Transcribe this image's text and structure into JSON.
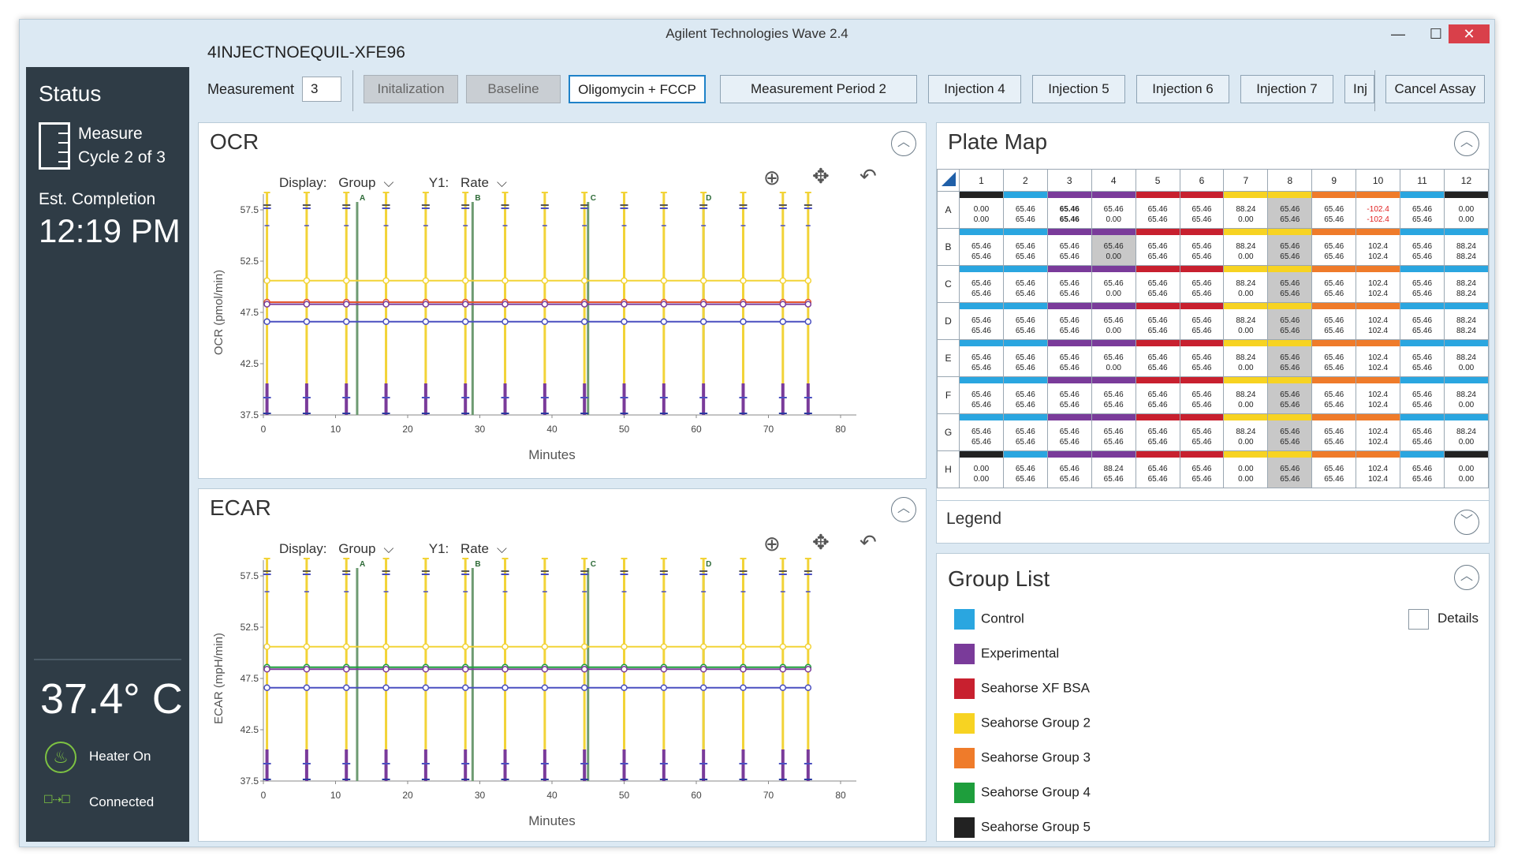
{
  "window": {
    "title": "Agilent Technologies Wave 2.4",
    "min": "—",
    "max": "☐",
    "close": "✕"
  },
  "assay_name": "4INJECTNOEQUIL-XFE96",
  "sidebar": {
    "status_title": "Status",
    "cycle_text": "Measure Cycle 2 of 3",
    "est_label": "Est. Completion",
    "est_time": "12:19 PM",
    "temperature": "37.4° C",
    "heater_label": "Heater On",
    "connected_label": "Connected"
  },
  "toolbar": {
    "measurement_label": "Measurement",
    "measurement_value": "3",
    "steps": [
      "Initalization",
      "Baseline",
      "Oligomycin + FCCP",
      "Measurement Period 2",
      "Injection 4",
      "Injection 5",
      "Injection 6",
      "Injection 7",
      "Inj"
    ],
    "cancel_label": "Cancel Assay"
  },
  "ocr_panel": {
    "title": "OCR",
    "display_label": "Display:",
    "display_value": "Group",
    "y1_label": "Y1:",
    "y1_value": "Rate"
  },
  "ecar_panel": {
    "title": "ECAR",
    "display_label": "Display:",
    "display_value": "Group",
    "y1_label": "Y1:",
    "y1_value": "Rate"
  },
  "chart_data": [
    {
      "type": "line",
      "title": "OCR",
      "xlabel": "Minutes",
      "ylabel": "OCR (pmol/min)",
      "xlim": [
        0,
        80
      ],
      "ylim": [
        37.5,
        57.5
      ],
      "xticks": [
        "0",
        "10",
        "20",
        "30",
        "40",
        "50",
        "60",
        "70",
        "80"
      ],
      "yticks": [
        "37.5",
        "42.5",
        "47.5",
        "52.5",
        "57.5"
      ],
      "injections": [
        {
          "label": "A",
          "x": 13
        },
        {
          "label": "B",
          "x": 29
        },
        {
          "label": "C",
          "x": 45
        },
        {
          "label": "D",
          "x": 61
        }
      ],
      "x": [
        0.5,
        6,
        11.5,
        17,
        22.5,
        28,
        33.5,
        39,
        44.5,
        50,
        55.5,
        61,
        66.5,
        72,
        75.5
      ],
      "series": [
        {
          "values": [
            50.6,
            50.6,
            50.6,
            50.6,
            50.6,
            50.6,
            50.6,
            50.6,
            50.6,
            50.6,
            50.6,
            50.6,
            50.6,
            50.6,
            50.6
          ],
          "color": "#f2d337"
        },
        {
          "values": [
            48.5,
            48.5,
            48.5,
            48.5,
            48.5,
            48.5,
            48.5,
            48.5,
            48.5,
            48.5,
            48.5,
            48.5,
            48.5,
            48.5,
            48.5
          ],
          "color": "#e4572e"
        },
        {
          "values": [
            48.3,
            48.3,
            48.3,
            48.3,
            48.3,
            48.3,
            48.3,
            48.3,
            48.3,
            48.3,
            48.3,
            48.3,
            48.3,
            48.3,
            48.3
          ],
          "color": "#7a3b9a"
        },
        {
          "values": [
            46.6,
            46.6,
            46.6,
            46.6,
            46.6,
            46.6,
            46.6,
            46.6,
            46.6,
            46.6,
            46.6,
            46.6,
            46.6,
            46.6,
            46.6
          ],
          "color": "#4a4fc0"
        }
      ],
      "grid": false
    },
    {
      "type": "line",
      "title": "ECAR",
      "xlabel": "Minutes",
      "ylabel": "ECAR (mpH/min)",
      "xlim": [
        0,
        80
      ],
      "ylim": [
        37.5,
        57.5
      ],
      "xticks": [
        "0",
        "10",
        "20",
        "30",
        "40",
        "50",
        "60",
        "70",
        "80"
      ],
      "yticks": [
        "37.5",
        "42.5",
        "47.5",
        "52.5",
        "57.5"
      ],
      "injections": [
        {
          "label": "A",
          "x": 13
        },
        {
          "label": "B",
          "x": 29
        },
        {
          "label": "C",
          "x": 45
        },
        {
          "label": "D",
          "x": 61
        }
      ],
      "x": [
        0.5,
        6,
        11.5,
        17,
        22.5,
        28,
        33.5,
        39,
        44.5,
        50,
        55.5,
        61,
        66.5,
        72,
        75.5
      ],
      "series": [
        {
          "values": [
            50.6,
            50.6,
            50.6,
            50.6,
            50.6,
            50.6,
            50.6,
            50.6,
            50.6,
            50.6,
            50.6,
            50.6,
            50.6,
            50.6,
            50.6
          ],
          "color": "#f2d337"
        },
        {
          "values": [
            48.6,
            48.6,
            48.6,
            48.6,
            48.6,
            48.6,
            48.6,
            48.6,
            48.6,
            48.6,
            48.6,
            48.6,
            48.6,
            48.6,
            48.6
          ],
          "color": "#1e9e3c"
        },
        {
          "values": [
            48.4,
            48.4,
            48.4,
            48.4,
            48.4,
            48.4,
            48.4,
            48.4,
            48.4,
            48.4,
            48.4,
            48.4,
            48.4,
            48.4,
            48.4
          ],
          "color": "#7a3b9a"
        },
        {
          "values": [
            46.6,
            46.6,
            46.6,
            46.6,
            46.6,
            46.6,
            46.6,
            46.6,
            46.6,
            46.6,
            46.6,
            46.6,
            46.6,
            46.6,
            46.6
          ],
          "color": "#4a4fc0"
        }
      ],
      "grid": false
    }
  ],
  "plate_map": {
    "title": "Plate Map",
    "columns": [
      "1",
      "2",
      "3",
      "4",
      "5",
      "6",
      "7",
      "8",
      "9",
      "10",
      "11",
      "12"
    ],
    "rows": [
      {
        "label": "A",
        "colors": [
          "#222222",
          "#2aa6e0",
          "#7a3b9a",
          "#7a3b9a",
          "#c8202f",
          "#c8202f",
          "#f7d322",
          "#f7d322",
          "#ef7b2a",
          "#ef7b2a",
          "#2aa6e0",
          "#222222"
        ],
        "top": [
          "0.00",
          "65.46",
          "65.46",
          "65.46",
          "65.46",
          "65.46",
          "88.24",
          "65.46",
          "65.46",
          "-102.4",
          "65.46",
          "0.00"
        ],
        "bottom": [
          "0.00",
          "65.46",
          "65.46",
          "0.00",
          "65.46",
          "65.46",
          "0.00",
          "65.46",
          "65.46",
          "-102.4",
          "65.46",
          "0.00"
        ]
      },
      {
        "label": "B",
        "colors": [
          "#2aa6e0",
          "#2aa6e0",
          "#7a3b9a",
          "#7a3b9a",
          "#c8202f",
          "#c8202f",
          "#f7d322",
          "#f7d322",
          "#ef7b2a",
          "#ef7b2a",
          "#2aa6e0",
          "#2aa6e0"
        ],
        "top": [
          "65.46",
          "65.46",
          "65.46",
          "65.46",
          "65.46",
          "65.46",
          "88.24",
          "65.46",
          "65.46",
          "102.4",
          "65.46",
          "88.24"
        ],
        "bottom": [
          "65.46",
          "65.46",
          "65.46",
          "0.00",
          "65.46",
          "65.46",
          "0.00",
          "65.46",
          "65.46",
          "102.4",
          "65.46",
          "88.24"
        ]
      },
      {
        "label": "C",
        "colors": [
          "#2aa6e0",
          "#2aa6e0",
          "#7a3b9a",
          "#7a3b9a",
          "#c8202f",
          "#c8202f",
          "#f7d322",
          "#f7d322",
          "#ef7b2a",
          "#ef7b2a",
          "#2aa6e0",
          "#2aa6e0"
        ],
        "top": [
          "65.46",
          "65.46",
          "65.46",
          "65.46",
          "65.46",
          "65.46",
          "88.24",
          "65.46",
          "65.46",
          "102.4",
          "65.46",
          "88.24"
        ],
        "bottom": [
          "65.46",
          "65.46",
          "65.46",
          "0.00",
          "65.46",
          "65.46",
          "0.00",
          "65.46",
          "65.46",
          "102.4",
          "65.46",
          "88.24"
        ]
      },
      {
        "label": "D",
        "colors": [
          "#2aa6e0",
          "#2aa6e0",
          "#7a3b9a",
          "#7a3b9a",
          "#c8202f",
          "#c8202f",
          "#f7d322",
          "#f7d322",
          "#ef7b2a",
          "#ef7b2a",
          "#2aa6e0",
          "#2aa6e0"
        ],
        "top": [
          "65.46",
          "65.46",
          "65.46",
          "65.46",
          "65.46",
          "65.46",
          "88.24",
          "65.46",
          "65.46",
          "102.4",
          "65.46",
          "88.24"
        ],
        "bottom": [
          "65.46",
          "65.46",
          "65.46",
          "0.00",
          "65.46",
          "65.46",
          "0.00",
          "65.46",
          "65.46",
          "102.4",
          "65.46",
          "88.24"
        ]
      },
      {
        "label": "E",
        "colors": [
          "#2aa6e0",
          "#2aa6e0",
          "#7a3b9a",
          "#7a3b9a",
          "#c8202f",
          "#c8202f",
          "#f7d322",
          "#f7d322",
          "#ef7b2a",
          "#ef7b2a",
          "#2aa6e0",
          "#2aa6e0"
        ],
        "top": [
          "65.46",
          "65.46",
          "65.46",
          "65.46",
          "65.46",
          "65.46",
          "88.24",
          "65.46",
          "65.46",
          "102.4",
          "65.46",
          "88.24"
        ],
        "bottom": [
          "65.46",
          "65.46",
          "65.46",
          "0.00",
          "65.46",
          "65.46",
          "0.00",
          "65.46",
          "65.46",
          "102.4",
          "65.46",
          "0.00"
        ]
      },
      {
        "label": "F",
        "colors": [
          "#2aa6e0",
          "#2aa6e0",
          "#7a3b9a",
          "#7a3b9a",
          "#c8202f",
          "#c8202f",
          "#f7d322",
          "#f7d322",
          "#ef7b2a",
          "#ef7b2a",
          "#2aa6e0",
          "#2aa6e0"
        ],
        "top": [
          "65.46",
          "65.46",
          "65.46",
          "65.46",
          "65.46",
          "65.46",
          "88.24",
          "65.46",
          "65.46",
          "102.4",
          "65.46",
          "88.24"
        ],
        "bottom": [
          "65.46",
          "65.46",
          "65.46",
          "65.46",
          "65.46",
          "65.46",
          "0.00",
          "65.46",
          "65.46",
          "102.4",
          "65.46",
          "0.00"
        ]
      },
      {
        "label": "G",
        "colors": [
          "#2aa6e0",
          "#2aa6e0",
          "#7a3b9a",
          "#7a3b9a",
          "#c8202f",
          "#c8202f",
          "#f7d322",
          "#f7d322",
          "#ef7b2a",
          "#ef7b2a",
          "#2aa6e0",
          "#2aa6e0"
        ],
        "top": [
          "65.46",
          "65.46",
          "65.46",
          "65.46",
          "65.46",
          "65.46",
          "88.24",
          "65.46",
          "65.46",
          "102.4",
          "65.46",
          "88.24"
        ],
        "bottom": [
          "65.46",
          "65.46",
          "65.46",
          "65.46",
          "65.46",
          "65.46",
          "0.00",
          "65.46",
          "65.46",
          "102.4",
          "65.46",
          "0.00"
        ]
      },
      {
        "label": "H",
        "colors": [
          "#222222",
          "#2aa6e0",
          "#7a3b9a",
          "#7a3b9a",
          "#c8202f",
          "#c8202f",
          "#f7d322",
          "#f7d322",
          "#ef7b2a",
          "#ef7b2a",
          "#2aa6e0",
          "#222222"
        ],
        "top": [
          "0.00",
          "65.46",
          "65.46",
          "88.24",
          "65.46",
          "65.46",
          "0.00",
          "65.46",
          "65.46",
          "102.4",
          "65.46",
          "0.00"
        ],
        "bottom": [
          "0.00",
          "65.46",
          "65.46",
          "65.46",
          "65.46",
          "65.46",
          "0.00",
          "65.46",
          "65.46",
          "102.4",
          "65.46",
          "0.00"
        ]
      }
    ]
  },
  "legend_title": "Legend",
  "group_list": {
    "title": "Group List",
    "details_label": "Details",
    "groups": [
      {
        "name": "Control",
        "color": "#2aa6e0"
      },
      {
        "name": "Experimental",
        "color": "#7a3b9a"
      },
      {
        "name": "Seahorse XF BSA",
        "color": "#c8202f"
      },
      {
        "name": "Seahorse Group 2",
        "color": "#f7d322"
      },
      {
        "name": "Seahorse Group 3",
        "color": "#ef7b2a"
      },
      {
        "name": "Seahorse Group 4",
        "color": "#1e9e3c"
      },
      {
        "name": "Seahorse Group 5",
        "color": "#222222"
      }
    ]
  }
}
